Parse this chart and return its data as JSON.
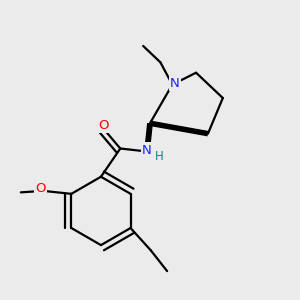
{
  "background_color": "#ebebeb",
  "atom_colors": {
    "N": "#2020ff",
    "O": "#ff0000",
    "C": "#000000",
    "H": "#008b8b"
  },
  "bond_color": "#000000",
  "bond_width": 1.6,
  "font_size_atoms": 9.5,
  "font_size_H": 8.5,
  "xlim": [
    0,
    1
  ],
  "ylim": [
    0,
    1
  ]
}
